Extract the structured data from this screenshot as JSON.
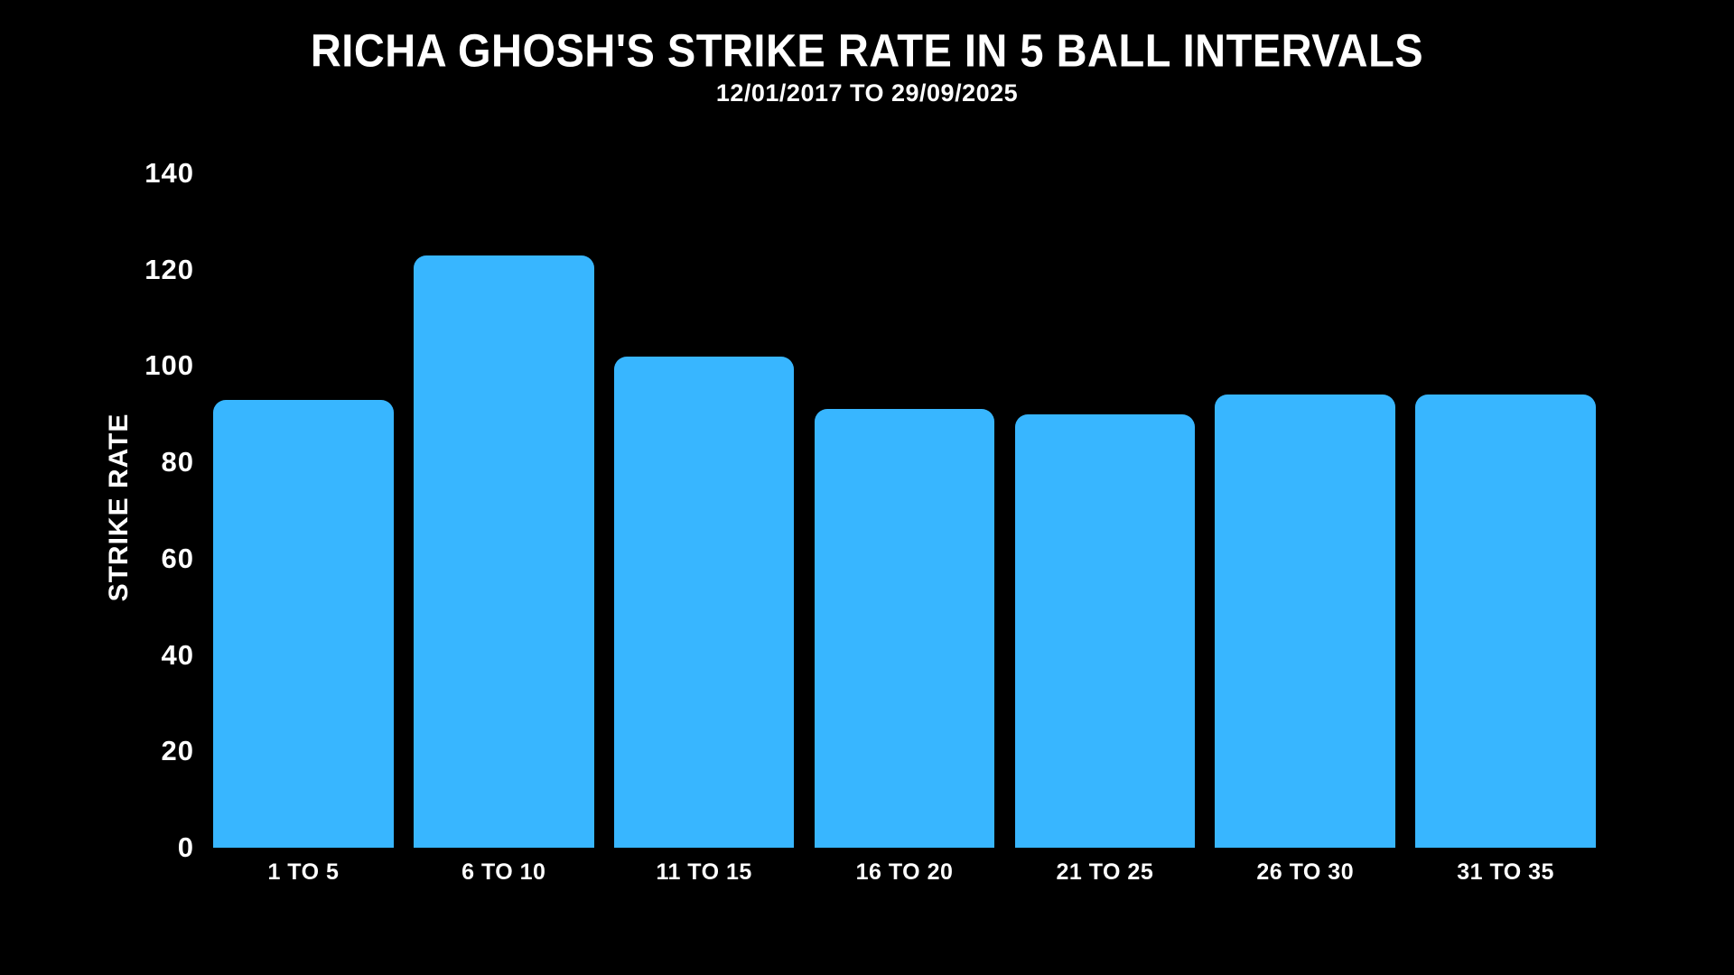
{
  "page": {
    "background": "#000000",
    "text_color": "#ffffff"
  },
  "chart_data": {
    "type": "bar",
    "title": "RICHA GHOSH'S STRIKE RATE IN 5 BALL INTERVALS",
    "subtitle": "12/01/2017 TO 29/09/2025",
    "ylabel": "STRIKE RATE",
    "xlabel": "",
    "categories": [
      "1 TO 5",
      "6 TO 10",
      "11 TO 15",
      "16 TO 20",
      "21 TO 25",
      "26 TO 30",
      "31 TO 35"
    ],
    "values": [
      93,
      123,
      102,
      91,
      90,
      94,
      94
    ],
    "ylim": [
      0,
      140
    ],
    "yticks": [
      0,
      20,
      40,
      60,
      80,
      100,
      120,
      140
    ],
    "grid": false,
    "legend": false,
    "bar_color": "#38b6ff",
    "bar_corner_radius_px": 14,
    "background": "#000000"
  }
}
